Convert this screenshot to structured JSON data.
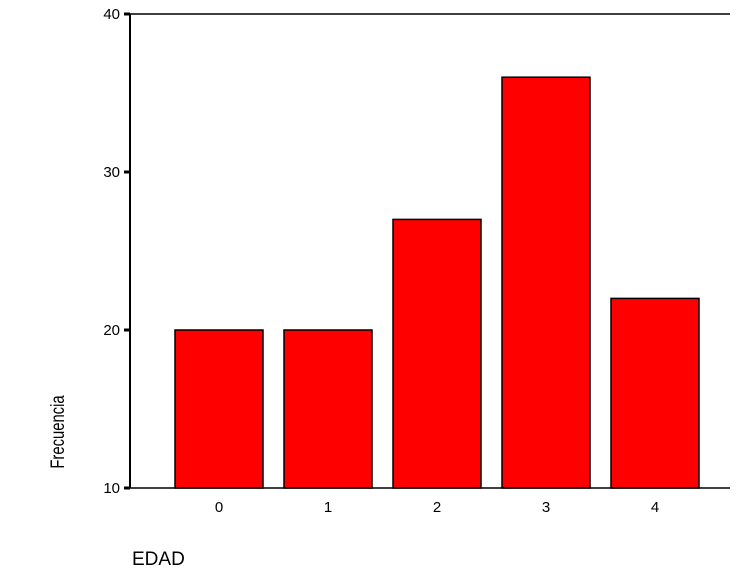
{
  "chart_data": {
    "type": "bar",
    "title": "",
    "xlabel": "EDAD",
    "ylabel": "Frecuencia",
    "categories": [
      "0",
      "1",
      "2",
      "3",
      "4"
    ],
    "values": [
      20,
      20,
      27,
      36,
      22
    ],
    "ylim": [
      10,
      40
    ],
    "yticks": [
      10,
      20,
      30,
      40
    ],
    "grid": false,
    "legend": "none",
    "colors": {
      "bar_fill": "#ff0000",
      "bar_stroke": "#000000",
      "axis": "#000000"
    }
  }
}
